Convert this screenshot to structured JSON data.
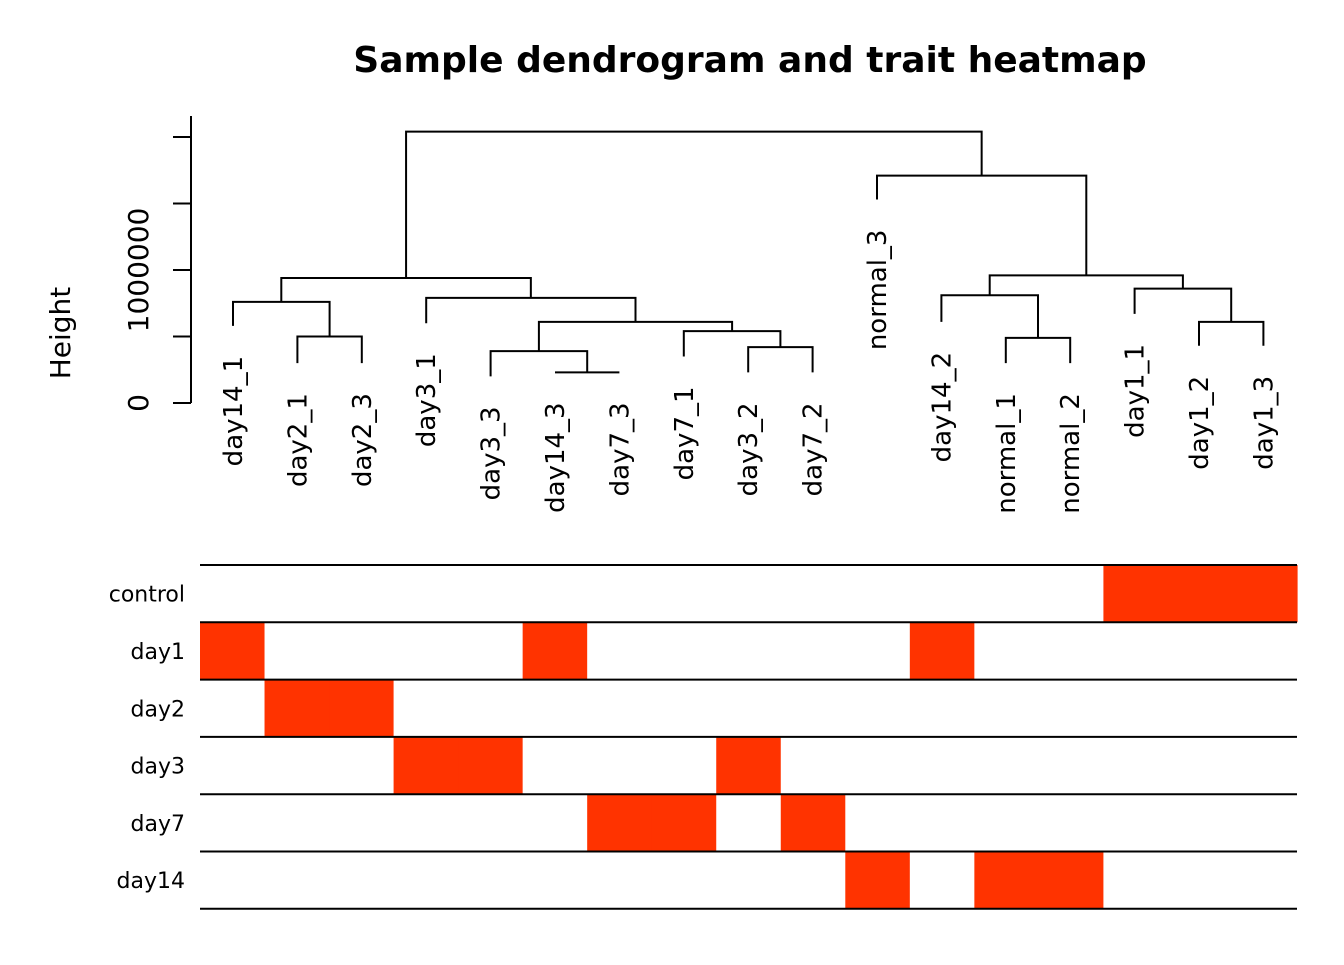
{
  "chart_data": {
    "type": "dendrogram-heatmap",
    "title": "Sample dendrogram and trait heatmap",
    "dendrogram": {
      "ylabel": "Height",
      "ylim": [
        0,
        2000000
      ],
      "yticks": [
        0,
        500000,
        1000000,
        1500000,
        2000000
      ],
      "ytick_labels": [
        "0",
        "",
        "1000000",
        "",
        ""
      ],
      "leaves": [
        {
          "name": "day14_1",
          "top": 580000
        },
        {
          "name": "day2_1",
          "top": 300000
        },
        {
          "name": "day2_3",
          "top": 300000
        },
        {
          "name": "day3_1",
          "top": 600000
        },
        {
          "name": "day3_3",
          "top": 200000
        },
        {
          "name": "day14_3",
          "top": 230000
        },
        {
          "name": "day7_3",
          "top": 230000
        },
        {
          "name": "day7_1",
          "top": 350000
        },
        {
          "name": "day3_2",
          "top": 230000
        },
        {
          "name": "day7_2",
          "top": 230000
        },
        {
          "name": "normal_3",
          "top": 1530000
        },
        {
          "name": "day14_2",
          "top": 610000
        },
        {
          "name": "normal_1",
          "top": 300000
        },
        {
          "name": "normal_2",
          "top": 300000
        },
        {
          "name": "day1_1",
          "top": 670000
        },
        {
          "name": "day1_2",
          "top": 430000
        },
        {
          "name": "day1_3",
          "top": 430000
        }
      ],
      "merges": [
        {
          "a": 1,
          "b": 2,
          "height": 500000
        },
        {
          "a": 5,
          "b": 6,
          "height": 230000
        },
        {
          "a": 8,
          "b": 9,
          "height": 420000
        },
        {
          "a": 12,
          "b": 13,
          "height": 490000
        },
        {
          "a": 15,
          "b": 16,
          "height": 610000
        },
        {
          "a": 4,
          "b": "c1",
          "height": 390000
        },
        {
          "a": 7,
          "b": "c2",
          "height": 540000
        },
        {
          "a": 11,
          "b": "c3",
          "height": 810000
        },
        {
          "a": 14,
          "b": "c4",
          "height": 860000
        },
        {
          "a": 0,
          "b": "c0",
          "height": 760000
        },
        {
          "a": "c5",
          "b": "c6",
          "height": 610000
        },
        {
          "a": "c7",
          "b": "c8",
          "height": 960000
        },
        {
          "a": 3,
          "b": "c10",
          "height": 790000
        },
        {
          "a": "c9",
          "b": "c12",
          "height": 940000
        },
        {
          "a": 10,
          "b": "c11",
          "height": 1710000
        },
        {
          "a": "c13",
          "b": "c14",
          "height": 2040000
        }
      ]
    },
    "heatmap": {
      "high_color": "#FF3300",
      "low_color": "#FFFFFF",
      "traits": [
        {
          "name": "control",
          "values": [
            0,
            0,
            0,
            0,
            0,
            0,
            0,
            0,
            0,
            0,
            0,
            0,
            0,
            0,
            1,
            1,
            1
          ]
        },
        {
          "name": "day1",
          "values": [
            1,
            0,
            0,
            0,
            0,
            1,
            0,
            0,
            0,
            0,
            0,
            1,
            0,
            0,
            0,
            0,
            0
          ]
        },
        {
          "name": "day2",
          "values": [
            0,
            1,
            1,
            0,
            0,
            0,
            0,
            0,
            0,
            0,
            0,
            0,
            0,
            0,
            0,
            0,
            0
          ]
        },
        {
          "name": "day3",
          "values": [
            0,
            0,
            0,
            1,
            1,
            0,
            0,
            0,
            1,
            0,
            0,
            0,
            0,
            0,
            0,
            0,
            0
          ]
        },
        {
          "name": "day7",
          "values": [
            0,
            0,
            0,
            0,
            0,
            0,
            1,
            1,
            0,
            1,
            0,
            0,
            0,
            0,
            0,
            0,
            0
          ]
        },
        {
          "name": "day14",
          "values": [
            0,
            0,
            0,
            0,
            0,
            0,
            0,
            0,
            0,
            0,
            1,
            0,
            1,
            1,
            0,
            0,
            0
          ]
        }
      ]
    }
  }
}
